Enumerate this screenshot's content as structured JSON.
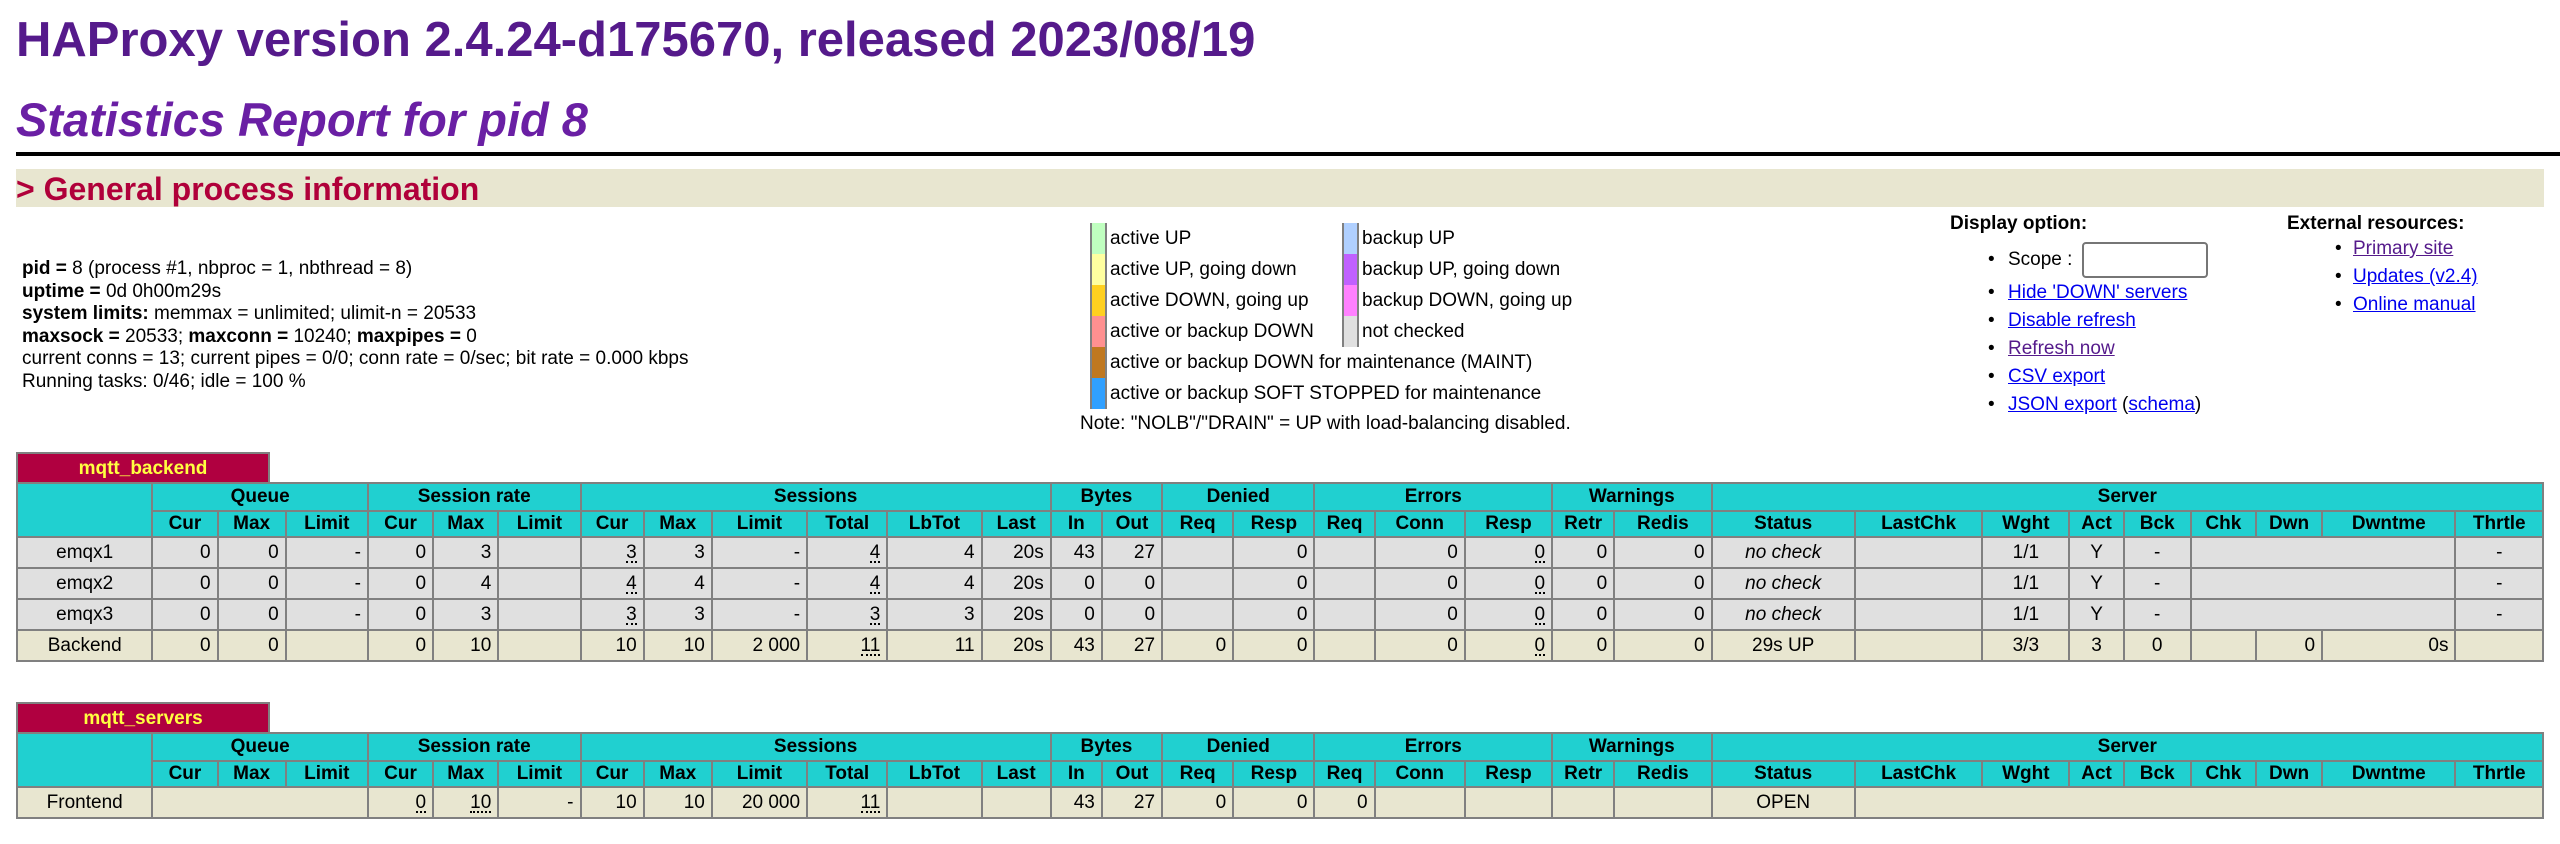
{
  "header": {
    "title": "HAProxy version 2.4.24-d175670, released 2023/08/19",
    "subtitle": "Statistics Report for pid 8"
  },
  "section": {
    "title": "> General process information"
  },
  "process_info": {
    "pid_label": "pid = ",
    "pid_value": "8 (process #1, nbproc = 1, nbthread = 8)",
    "uptime_label": "uptime = ",
    "uptime_value": "0d 0h00m29s",
    "syslimits_label": "system limits:",
    "syslimits_value": " memmax = unlimited; ulimit-n = 20533",
    "maxsock_label": "maxsock = ",
    "maxsock_value": "20533; ",
    "maxconn_label": "maxconn = ",
    "maxconn_value": "10240; ",
    "maxpipes_label": "maxpipes = ",
    "maxpipes_value": "0",
    "current_line": "current conns = 13; current pipes = 0/0; conn rate = 0/sec; bit rate = 0.000 kbps",
    "tasks_line": "Running tasks: 0/46; idle = 100 %"
  },
  "legend": {
    "items": [
      {
        "label": "active UP",
        "color": "#c0ffc0"
      },
      {
        "label": "active UP, going down",
        "color": "#ffffa0"
      },
      {
        "label": "active DOWN, going up",
        "color": "#ffd020"
      },
      {
        "label": "active or backup DOWN",
        "color": "#ff9090"
      },
      {
        "label": "active or backup DOWN for maintenance (MAINT)",
        "color": "#c07820"
      },
      {
        "label": "active or backup SOFT STOPPED for maintenance",
        "color": "#30a0ff"
      },
      {
        "label": "backup UP",
        "color": "#b0d0ff"
      },
      {
        "label": "backup UP, going down",
        "color": "#c060ff"
      },
      {
        "label": "backup DOWN, going up",
        "color": "#ff80ff"
      },
      {
        "label": "not checked",
        "color": "#e0e0e0"
      }
    ],
    "note": "Note: \"NOLB\"/\"DRAIN\" = UP with load-balancing disabled."
  },
  "display_options": {
    "title": "Display option:",
    "scope_label": "Scope : ",
    "scope_value": "",
    "links": {
      "hide_down": "Hide 'DOWN' servers",
      "disable_refresh": "Disable refresh",
      "refresh_now": "Refresh now",
      "csv_export": "CSV export",
      "json_export": "JSON export",
      "schema": "schema"
    }
  },
  "external_resources": {
    "title": "External resources:",
    "links": {
      "primary_site": "Primary site",
      "updates": "Updates (v2.4)",
      "manual": "Online manual"
    }
  },
  "columns": {
    "groups": {
      "queue": "Queue",
      "session_rate": "Session rate",
      "sessions": "Sessions",
      "bytes": "Bytes",
      "denied": "Denied",
      "errors": "Errors",
      "warnings": "Warnings",
      "server": "Server"
    },
    "sub": {
      "cur": "Cur",
      "max": "Max",
      "limit": "Limit",
      "total": "Total",
      "lbtot": "LbTot",
      "last": "Last",
      "in": "In",
      "out": "Out",
      "req": "Req",
      "resp": "Resp",
      "conn": "Conn",
      "retr": "Retr",
      "redis": "Redis",
      "status": "Status",
      "lastchk": "LastChk",
      "wght": "Wght",
      "act": "Act",
      "bck": "Bck",
      "chk": "Chk",
      "dwn": "Dwn",
      "dwntme": "Dwntme",
      "thrtle": "Thrtle"
    }
  },
  "backend": {
    "name": "mqtt_backend",
    "servers": [
      {
        "name": "emqx1",
        "q_cur": "0",
        "q_max": "0",
        "q_limit": "-",
        "sr_cur": "0",
        "sr_max": "3",
        "sr_limit": "",
        "s_cur": "3",
        "s_max": "3",
        "s_limit": "-",
        "s_total": "4",
        "s_lbtot": "4",
        "s_last": "20s",
        "b_in": "43",
        "b_out": "27",
        "d_req": "",
        "d_resp": "0",
        "e_req": "",
        "e_conn": "0",
        "e_resp": "0",
        "w_retr": "0",
        "w_redis": "0",
        "status": "no check",
        "lastchk": "",
        "wght": "1/1",
        "act": "Y",
        "bck": "-",
        "chk_dwn_dwntme": "",
        "thrtle": "-"
      },
      {
        "name": "emqx2",
        "q_cur": "0",
        "q_max": "0",
        "q_limit": "-",
        "sr_cur": "0",
        "sr_max": "4",
        "sr_limit": "",
        "s_cur": "4",
        "s_max": "4",
        "s_limit": "-",
        "s_total": "4",
        "s_lbtot": "4",
        "s_last": "20s",
        "b_in": "0",
        "b_out": "0",
        "d_req": "",
        "d_resp": "0",
        "e_req": "",
        "e_conn": "0",
        "e_resp": "0",
        "w_retr": "0",
        "w_redis": "0",
        "status": "no check",
        "lastchk": "",
        "wght": "1/1",
        "act": "Y",
        "bck": "-",
        "chk_dwn_dwntme": "",
        "thrtle": "-"
      },
      {
        "name": "emqx3",
        "q_cur": "0",
        "q_max": "0",
        "q_limit": "-",
        "sr_cur": "0",
        "sr_max": "3",
        "sr_limit": "",
        "s_cur": "3",
        "s_max": "3",
        "s_limit": "-",
        "s_total": "3",
        "s_lbtot": "3",
        "s_last": "20s",
        "b_in": "0",
        "b_out": "0",
        "d_req": "",
        "d_resp": "0",
        "e_req": "",
        "e_conn": "0",
        "e_resp": "0",
        "w_retr": "0",
        "w_redis": "0",
        "status": "no check",
        "lastchk": "",
        "wght": "1/1",
        "act": "Y",
        "bck": "-",
        "chk_dwn_dwntme": "",
        "thrtle": "-"
      }
    ],
    "total": {
      "name": "Backend",
      "q_cur": "0",
      "q_max": "0",
      "q_limit": "",
      "sr_cur": "0",
      "sr_max": "10",
      "sr_limit": "",
      "s_cur": "10",
      "s_max": "10",
      "s_limit": "2 000",
      "s_total": "11",
      "s_lbtot": "11",
      "s_last": "20s",
      "b_in": "43",
      "b_out": "27",
      "d_req": "0",
      "d_resp": "0",
      "e_req": "",
      "e_conn": "0",
      "e_resp": "0",
      "w_retr": "0",
      "w_redis": "0",
      "status": "29s UP",
      "lastchk": "",
      "wght": "3/3",
      "act": "3",
      "bck": "0",
      "chk": "",
      "dwn": "0",
      "dwntme": "0s",
      "thrtle": ""
    }
  },
  "frontend": {
    "name": "mqtt_servers",
    "row": {
      "name": "Frontend",
      "sr_cur": "0",
      "sr_max": "10",
      "sr_limit": "-",
      "s_cur": "10",
      "s_max": "10",
      "s_limit": "20 000",
      "s_total": "11",
      "s_lbtot": "",
      "s_last": "",
      "b_in": "43",
      "b_out": "27",
      "d_req": "0",
      "d_resp": "0",
      "e_req": "0",
      "e_conn": "",
      "e_resp": "",
      "w_retr": "",
      "w_redis": "",
      "status": "OPEN"
    }
  }
}
